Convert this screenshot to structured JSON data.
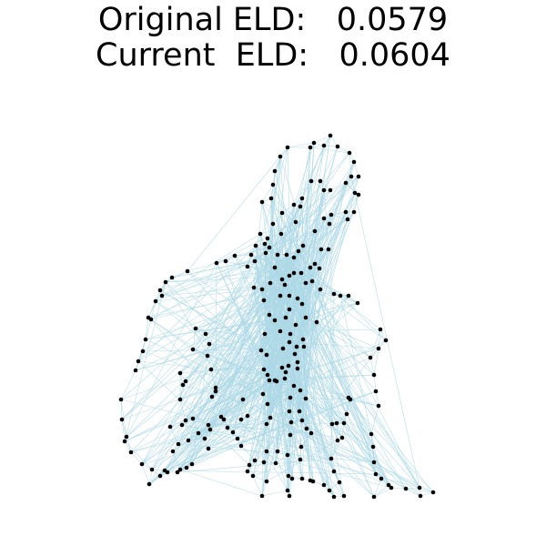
{
  "title": {
    "original_label": "Original ELD:",
    "original_value": "0.0579",
    "current_label": "Current  ELD:",
    "current_value": "0.0604"
  },
  "colors": {
    "edge": "#add8e6",
    "node": "#000000",
    "background": "#ffffff"
  }
}
